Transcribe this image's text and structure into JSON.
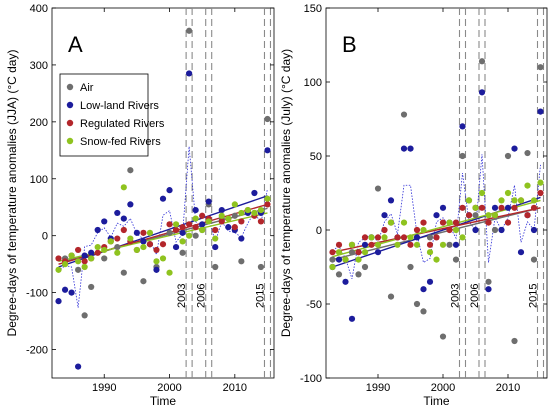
{
  "chart_data": [
    {
      "type": "scatter",
      "panel_label": "A",
      "xlabel": "Time",
      "ylabel": "Degree-days of temperature anomalies (JJA) (°C day)",
      "xlim": [
        1982,
        2016
      ],
      "ylim": [
        -250,
        400
      ],
      "x_ticks": [
        1990,
        2000,
        2010
      ],
      "y_ticks": [
        -200,
        -100,
        0,
        100,
        200,
        300,
        400
      ],
      "annotations": [
        {
          "text": "2003",
          "year": 2003
        },
        {
          "text": "2006",
          "year": 2006
        },
        {
          "text": "2015",
          "year": 2015
        }
      ],
      "legend": {
        "placement": "top-left",
        "entries": [
          "Air",
          "Low-land Rivers",
          "Regulated Rivers",
          "Snow-fed Rivers"
        ]
      },
      "series": [
        {
          "name": "Air",
          "color": "#6e6e6e",
          "x": [
            1984,
            1986,
            1987,
            1988,
            1990,
            1992,
            1993,
            1994,
            1996,
            1998,
            2000,
            2002,
            2003,
            2004,
            2005,
            2006,
            2007,
            2008,
            2010,
            2011,
            2013,
            2014,
            2015
          ],
          "y": [
            -40,
            -60,
            -140,
            -90,
            -40,
            -20,
            -65,
            115,
            -80,
            -55,
            5,
            -30,
            360,
            0,
            10,
            55,
            -55,
            30,
            35,
            -45,
            40,
            -55,
            205
          ],
          "trend": [
            -45,
            48
          ]
        },
        {
          "name": "Low-land Rivers",
          "color": "#1c1c9c",
          "x": [
            1983,
            1984,
            1985,
            1986,
            1987,
            1988,
            1989,
            1990,
            1991,
            1992,
            1993,
            1994,
            1995,
            1996,
            1997,
            1998,
            1999,
            2000,
            2001,
            2002,
            2003,
            2004,
            2005,
            2006,
            2007,
            2008,
            2009,
            2010,
            2011,
            2012,
            2013,
            2014,
            2015
          ],
          "y": [
            -115,
            -95,
            -100,
            -230,
            -35,
            -30,
            10,
            25,
            -5,
            40,
            30,
            55,
            5,
            -10,
            -15,
            -60,
            65,
            80,
            -20,
            5,
            285,
            45,
            20,
            60,
            -20,
            45,
            15,
            10,
            -5,
            40,
            75,
            40,
            150
          ],
          "trend": [
            -55,
            70
          ]
        },
        {
          "name": "Regulated Rivers",
          "color": "#b3262b",
          "x": [
            1983,
            1984,
            1985,
            1986,
            1987,
            1988,
            1989,
            1990,
            1991,
            1992,
            1993,
            1994,
            1995,
            1996,
            1997,
            1998,
            1999,
            2000,
            2001,
            2002,
            2003,
            2004,
            2005,
            2006,
            2007,
            2008,
            2009,
            2010,
            2011,
            2012,
            2013,
            2014,
            2015
          ],
          "y": [
            -40,
            -45,
            -35,
            -25,
            -45,
            -40,
            -30,
            -20,
            -10,
            -5,
            10,
            -10,
            -25,
            5,
            -15,
            -25,
            -15,
            20,
            10,
            15,
            20,
            15,
            35,
            30,
            10,
            25,
            30,
            15,
            25,
            45,
            35,
            25,
            55
          ],
          "trend": [
            -50,
            55
          ]
        },
        {
          "name": "Snow-fed Rivers",
          "color": "#8fc31f",
          "x": [
            1983,
            1984,
            1985,
            1986,
            1987,
            1988,
            1989,
            1990,
            1991,
            1992,
            1993,
            1994,
            1995,
            1996,
            1997,
            1998,
            1999,
            2000,
            2001,
            2002,
            2003,
            2004,
            2005,
            2006,
            2007,
            2008,
            2009,
            2010,
            2011,
            2012,
            2013,
            2014,
            2015
          ],
          "y": [
            -60,
            -50,
            -35,
            -45,
            -55,
            -40,
            -20,
            -25,
            -10,
            -30,
            85,
            -5,
            -25,
            -20,
            5,
            -45,
            -40,
            -65,
            20,
            -10,
            0,
            30,
            10,
            25,
            -5,
            35,
            30,
            55,
            40,
            45,
            40,
            45,
            65
          ],
          "trend": [
            -45,
            40
          ]
        }
      ]
    },
    {
      "type": "scatter",
      "panel_label": "B",
      "xlabel": "Time",
      "ylabel": "Degree-days of temperature anomalies (July) (°C day)",
      "xlim": [
        1982,
        2016
      ],
      "ylim": [
        -100,
        150
      ],
      "x_ticks": [
        1990,
        2000,
        2010
      ],
      "y_ticks": [
        -100,
        -50,
        0,
        50,
        100,
        150
      ],
      "annotations": [
        {
          "text": "2003",
          "year": 2003
        },
        {
          "text": "2006",
          "year": 2006
        },
        {
          "text": "2015",
          "year": 2015
        }
      ],
      "series": [
        {
          "name": "Air",
          "color": "#6e6e6e",
          "x": [
            1983,
            1984,
            1986,
            1987,
            1988,
            1990,
            1992,
            1994,
            1995,
            1996,
            1997,
            1998,
            2000,
            2001,
            2002,
            2003,
            2004,
            2005,
            2006,
            2007,
            2008,
            2010,
            2011,
            2013,
            2014,
            2015
          ],
          "y": [
            -20,
            -30,
            -15,
            -30,
            -25,
            28,
            -45,
            78,
            -25,
            -50,
            -55,
            -5,
            -72,
            -10,
            -20,
            50,
            20,
            10,
            114,
            -35,
            0,
            50,
            -75,
            52,
            -20,
            110
          ],
          "trend": [
            -20,
            15
          ]
        },
        {
          "name": "Low-land Rivers",
          "color": "#1c1c9c",
          "x": [
            1983,
            1984,
            1985,
            1986,
            1987,
            1988,
            1989,
            1990,
            1991,
            1992,
            1993,
            1994,
            1995,
            1996,
            1997,
            1998,
            1999,
            2000,
            2001,
            2002,
            2003,
            2004,
            2005,
            2006,
            2007,
            2008,
            2009,
            2010,
            2011,
            2012,
            2013,
            2014,
            2015
          ],
          "y": [
            -25,
            -20,
            -35,
            -60,
            -15,
            -10,
            -5,
            -15,
            10,
            20,
            -5,
            55,
            55,
            -5,
            -40,
            -35,
            10,
            15,
            5,
            -10,
            70,
            10,
            0,
            93,
            -40,
            15,
            0,
            15,
            55,
            -15,
            10,
            0,
            80
          ],
          "trend": [
            -25,
            22
          ]
        },
        {
          "name": "Regulated Rivers",
          "color": "#b3262b",
          "x": [
            1983,
            1984,
            1985,
            1986,
            1987,
            1988,
            1989,
            1990,
            1991,
            1992,
            1993,
            1994,
            1995,
            1996,
            1997,
            1998,
            1999,
            2000,
            2001,
            2002,
            2003,
            2004,
            2005,
            2006,
            2007,
            2008,
            2009,
            2010,
            2011,
            2012,
            2013,
            2014,
            2015
          ],
          "y": [
            -15,
            -10,
            -20,
            -10,
            -15,
            -5,
            -10,
            -5,
            0,
            5,
            -5,
            -5,
            -10,
            0,
            5,
            -10,
            -5,
            5,
            0,
            5,
            15,
            10,
            15,
            15,
            5,
            10,
            15,
            5,
            15,
            20,
            10,
            15,
            25
          ],
          "trend": [
            -15,
            15
          ]
        },
        {
          "name": "Snow-fed Rivers",
          "color": "#8fc31f",
          "x": [
            1983,
            1984,
            1985,
            1986,
            1987,
            1988,
            1989,
            1990,
            1991,
            1992,
            1993,
            1994,
            1995,
            1996,
            1997,
            1998,
            1999,
            2000,
            2001,
            2002,
            2003,
            2004,
            2005,
            2006,
            2007,
            2008,
            2009,
            2010,
            2011,
            2012,
            2013,
            2014,
            2015
          ],
          "y": [
            -25,
            -15,
            -20,
            -10,
            -20,
            -15,
            -5,
            -10,
            -5,
            5,
            -10,
            5,
            -5,
            -10,
            0,
            -15,
            -20,
            -10,
            5,
            0,
            -5,
            20,
            15,
            25,
            10,
            10,
            20,
            25,
            20,
            20,
            30,
            20,
            32
          ],
          "trend": [
            -18,
            20
          ]
        }
      ]
    }
  ]
}
